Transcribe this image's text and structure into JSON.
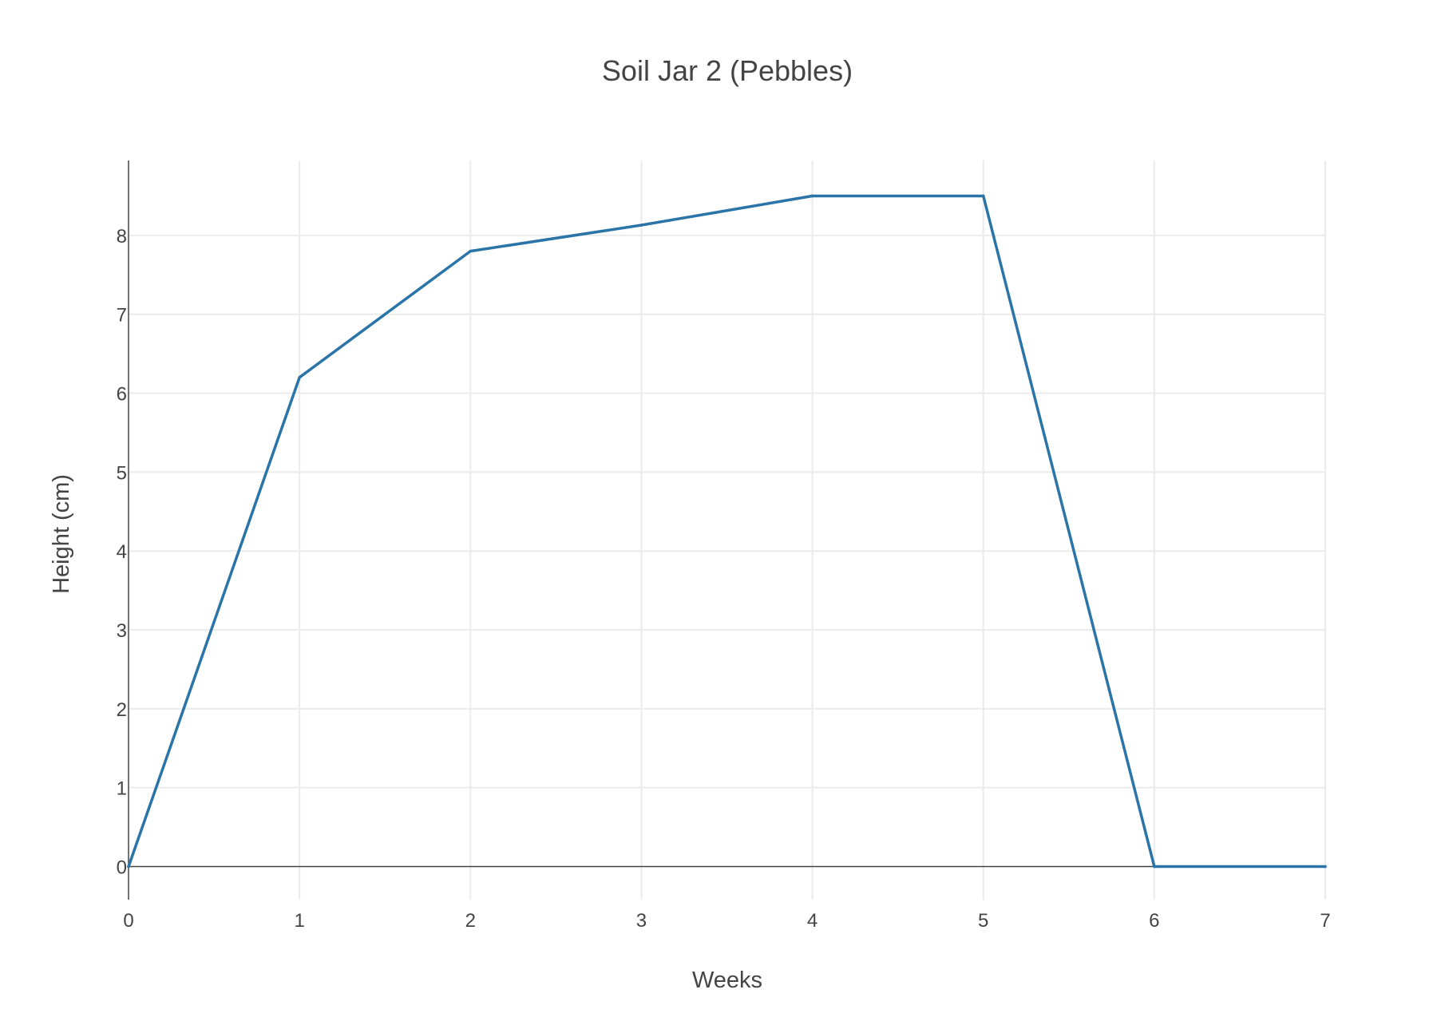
{
  "chart_data": {
    "type": "line",
    "title": "Soil Jar 2 (Pebbles)",
    "xlabel": "Weeks",
    "ylabel": "Height (cm)",
    "xlim": [
      0,
      7
    ],
    "ylim": [
      -0.42,
      8.95
    ],
    "x_ticks": [
      0,
      1,
      2,
      3,
      4,
      5,
      6,
      7
    ],
    "y_ticks": [
      0,
      1,
      2,
      3,
      4,
      5,
      6,
      7,
      8
    ],
    "grid": true,
    "legend": "none",
    "series": [
      {
        "color": "#2b74a8",
        "x": [
          0,
          1,
          2,
          3,
          4,
          5,
          6,
          7
        ],
        "y": [
          0,
          6.2,
          7.8,
          8.13,
          8.5,
          8.5,
          0,
          0
        ]
      }
    ]
  }
}
